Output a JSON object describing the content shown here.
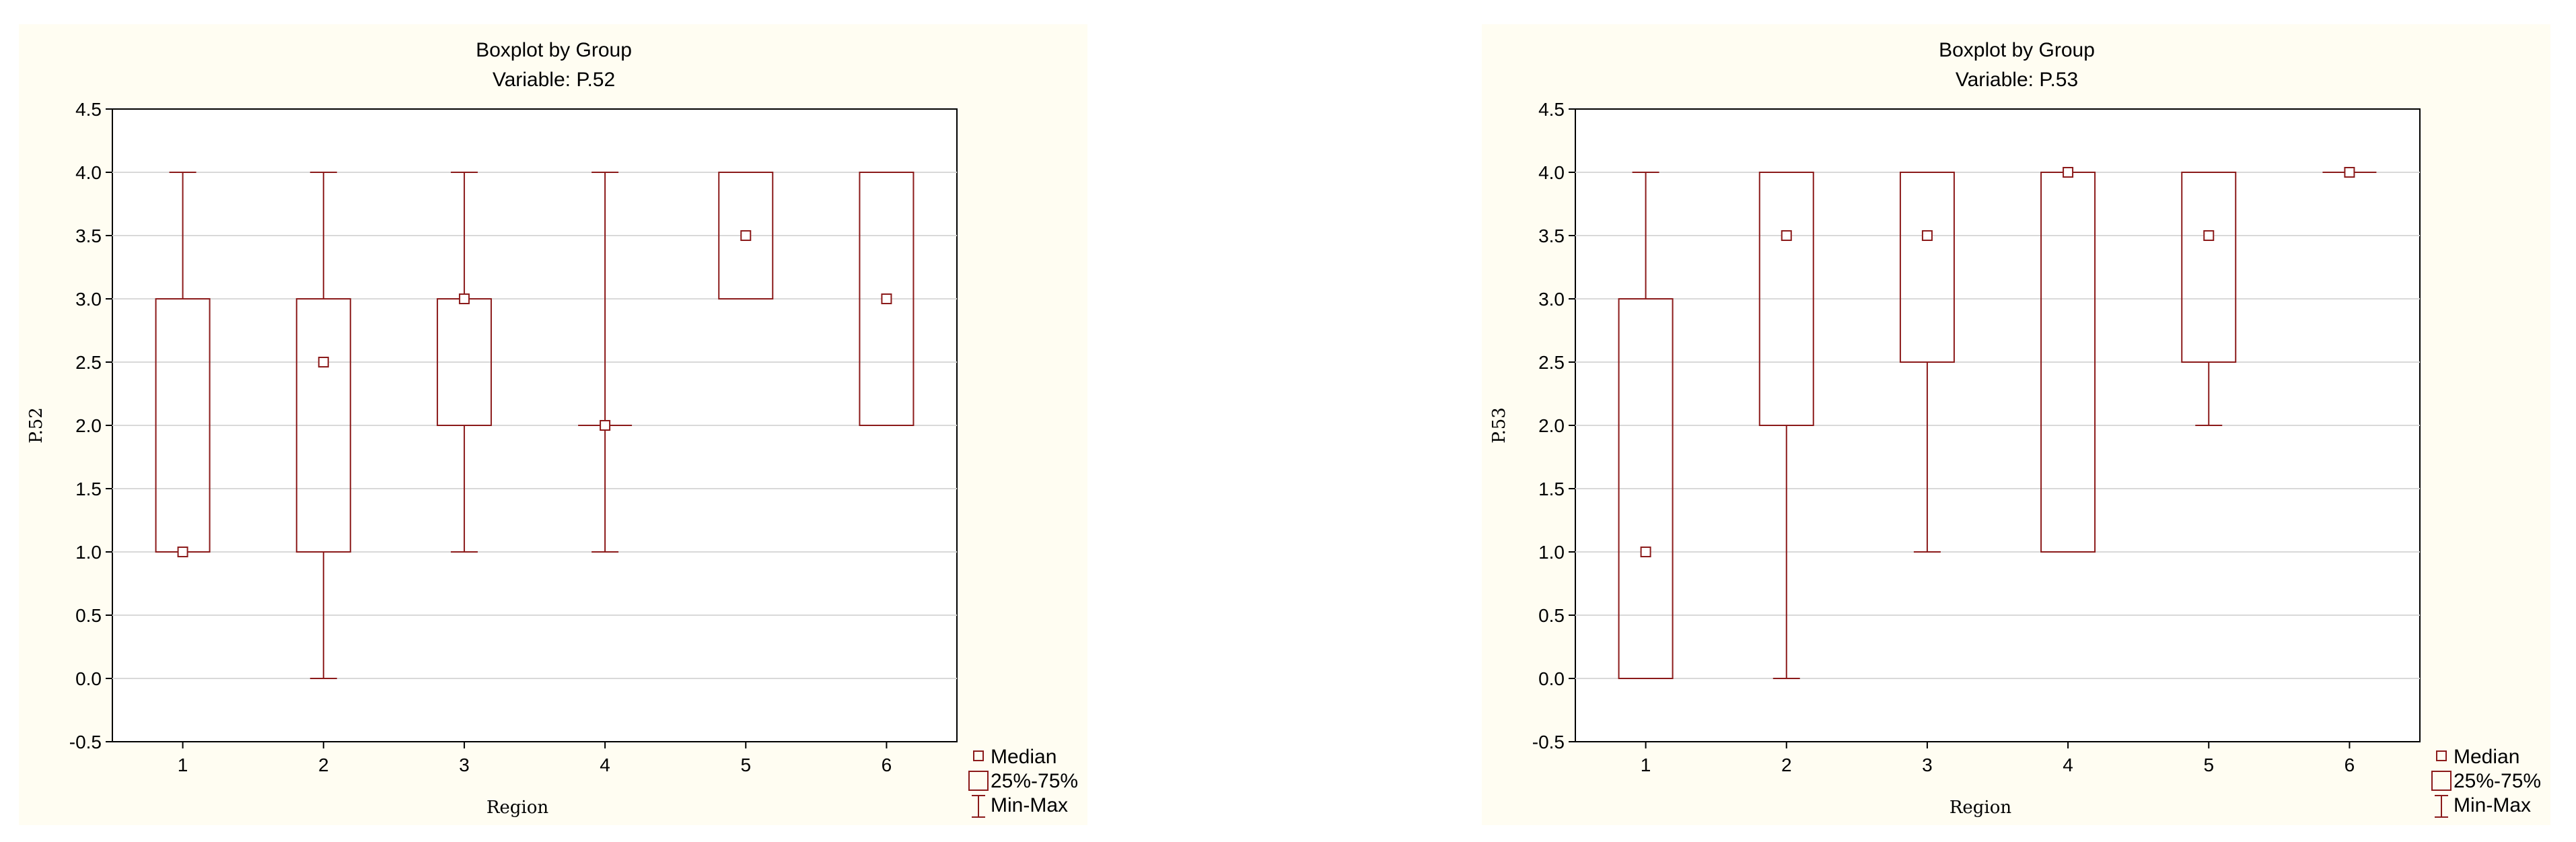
{
  "colors": {
    "panel_bg": "#fffdf2",
    "plot_bg": "#ffffff",
    "series": "#8b1a1a",
    "grid": "#d9d9d9",
    "axis": "#000000"
  },
  "legend": {
    "median": "Median",
    "box": "25%-75%",
    "whisker": "Min-Max"
  },
  "chart_data": [
    {
      "type": "boxplot",
      "title": "Boxplot by Group",
      "subtitle": "Variable: P.52",
      "xlabel": "Region",
      "ylabel": "P.52",
      "ylim": [
        -0.5,
        4.5
      ],
      "yticks": [
        "-0.5",
        "0.0",
        "0.5",
        "1.0",
        "1.5",
        "2.0",
        "2.5",
        "3.0",
        "3.5",
        "4.0",
        "4.5"
      ],
      "categories": [
        "1",
        "2",
        "3",
        "4",
        "5",
        "6"
      ],
      "groups": [
        {
          "median": 1.0,
          "q1": 1.0,
          "q3": 3.0,
          "min": 1.0,
          "max": 4.0
        },
        {
          "median": 2.5,
          "q1": 1.0,
          "q3": 3.0,
          "min": 0.0,
          "max": 4.0
        },
        {
          "median": 3.0,
          "q1": 2.0,
          "q3": 3.0,
          "min": 1.0,
          "max": 4.0
        },
        {
          "median": 2.0,
          "q1": 2.0,
          "q3": 2.0,
          "min": 1.0,
          "max": 4.0
        },
        {
          "median": 3.5,
          "q1": 3.0,
          "q3": 4.0,
          "min": 3.0,
          "max": 4.0
        },
        {
          "median": 3.0,
          "q1": 2.0,
          "q3": 4.0,
          "min": 2.0,
          "max": 4.0
        }
      ],
      "grid": true,
      "legend_position": "bottom-right"
    },
    {
      "type": "boxplot",
      "title": "Boxplot by Group",
      "subtitle": "Variable: P.53",
      "xlabel": "Region",
      "ylabel": "P.53",
      "ylim": [
        -0.5,
        4.5
      ],
      "yticks": [
        "-0.5",
        "0.0",
        "0.5",
        "1.0",
        "1.5",
        "2.0",
        "2.5",
        "3.0",
        "3.5",
        "4.0",
        "4.5"
      ],
      "categories": [
        "1",
        "2",
        "3",
        "4",
        "5",
        "6"
      ],
      "groups": [
        {
          "median": 1.0,
          "q1": 0.0,
          "q3": 3.0,
          "min": 0.0,
          "max": 4.0
        },
        {
          "median": 3.5,
          "q1": 2.0,
          "q3": 4.0,
          "min": 0.0,
          "max": 4.0
        },
        {
          "median": 3.5,
          "q1": 2.5,
          "q3": 4.0,
          "min": 1.0,
          "max": 4.0
        },
        {
          "median": 4.0,
          "q1": 1.0,
          "q3": 4.0,
          "min": 1.0,
          "max": 4.0
        },
        {
          "median": 3.5,
          "q1": 2.5,
          "q3": 4.0,
          "min": 2.0,
          "max": 4.0
        },
        {
          "median": 4.0,
          "q1": 4.0,
          "q3": 4.0,
          "min": 4.0,
          "max": 4.0
        }
      ],
      "grid": true,
      "legend_position": "bottom-right"
    }
  ]
}
